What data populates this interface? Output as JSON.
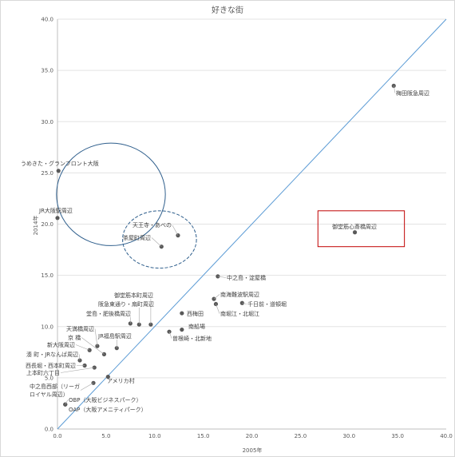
{
  "chart_data": {
    "type": "scatter",
    "title": "好きな街",
    "xlabel": "2005年",
    "ylabel": "2014年",
    "xlim": [
      0,
      40
    ],
    "ylim": [
      0,
      40
    ],
    "xticks": [
      "0.0",
      "5.0",
      "10.0",
      "15.0",
      "20.0",
      "25.0",
      "30.0",
      "35.0",
      "40.0"
    ],
    "yticks": [
      "0.0",
      "5.0",
      "10.0",
      "15.0",
      "20.0",
      "25.0",
      "30.0",
      "35.0",
      "40.0"
    ],
    "grid": "horizontal",
    "reference_line": {
      "from": [
        0,
        0
      ],
      "to": [
        40,
        40
      ],
      "color": "#5b9bd5"
    },
    "marker_color": "#595959",
    "points": [
      {
        "label": "梅田阪急周辺",
        "x": 34.6,
        "y": 33.5
      },
      {
        "label": "うめきた・グランフロント大阪",
        "x": 0.1,
        "y": 25.2
      },
      {
        "label": "JR大阪駅周辺",
        "x": 0.0,
        "y": 20.6
      },
      {
        "label": "天王寺・あべの",
        "x": 12.4,
        "y": 18.9
      },
      {
        "label": "茶屋町周辺",
        "x": 10.7,
        "y": 17.8
      },
      {
        "label": "御堂筋心斎橋周辺",
        "x": 30.6,
        "y": 19.2
      },
      {
        "label": "中之島・淀屋橋",
        "x": 16.5,
        "y": 14.9
      },
      {
        "label": "南海難波駅周辺",
        "x": 16.1,
        "y": 12.7
      },
      {
        "label": "千日前・道頓堀",
        "x": 19.0,
        "y": 12.3
      },
      {
        "label": "南堀江・北堀江",
        "x": 16.3,
        "y": 12.2
      },
      {
        "label": "西梅田",
        "x": 12.8,
        "y": 11.3
      },
      {
        "label": "南船場",
        "x": 12.8,
        "y": 9.7
      },
      {
        "label": "曽根崎・北新地",
        "x": 11.5,
        "y": 9.5
      },
      {
        "label": "御堂筋本町周辺",
        "x": 9.6,
        "y": 10.2
      },
      {
        "label": "阪急東通り・扇町周辺",
        "x": 8.4,
        "y": 10.2
      },
      {
        "label": "堂島・肥後橋周辺",
        "x": 7.5,
        "y": 10.3
      },
      {
        "label": "天満橋周辺",
        "x": 4.1,
        "y": 8.1
      },
      {
        "label": "JR福島駅周辺",
        "x": 6.1,
        "y": 7.9
      },
      {
        "label": "京 橋",
        "x": 4.8,
        "y": 7.3
      },
      {
        "label": "新大阪周辺",
        "x": 3.3,
        "y": 7.7
      },
      {
        "label": "湊 町・JRなんば周辺",
        "x": 2.3,
        "y": 6.7
      },
      {
        "label": "西長堀・西本町周辺",
        "x": 2.8,
        "y": 6.2
      },
      {
        "label": "上本町六丁目",
        "x": 3.8,
        "y": 6.0
      },
      {
        "label": "アメリカ村",
        "x": 5.2,
        "y": 5.1
      },
      {
        "label": "中之島西部（リーガロイヤル周辺）",
        "x": 3.7,
        "y": 4.5
      },
      {
        "label": "OBP（大阪ビジネスパーク）",
        "x": 0.8,
        "y": 2.4
      },
      {
        "label": "OAP（大阪アメニティパーク）",
        "x": 0.8,
        "y": 2.4
      }
    ],
    "annotations": [
      {
        "shape": "ellipse",
        "style": "solid",
        "color": "#2e5e8c",
        "center": [
          5.5,
          22.9
        ],
        "radii": [
          5.6,
          5.0
        ]
      },
      {
        "shape": "ellipse",
        "style": "dashed",
        "color": "#2e5e8c",
        "center": [
          10.5,
          18.5
        ],
        "radii": [
          3.8,
          2.8
        ]
      },
      {
        "shape": "rect",
        "style": "solid",
        "color": "#c00000",
        "from": [
          26.8,
          17.8
        ],
        "to": [
          35.7,
          21.3
        ]
      }
    ]
  }
}
